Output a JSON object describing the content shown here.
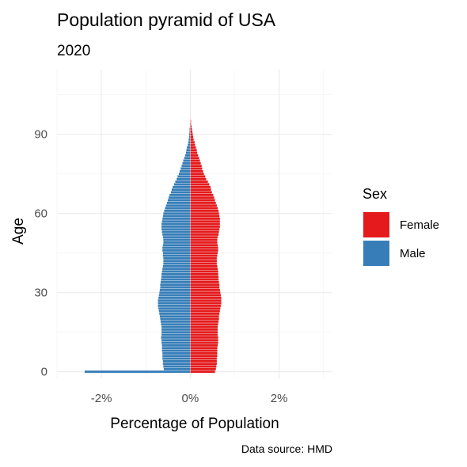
{
  "chart_data": {
    "type": "bar",
    "orientation": "horizontal",
    "title": "Population pyramid of USA",
    "subtitle": "2020",
    "xlabel": "Percentage of Population",
    "ylabel": "Age",
    "caption": "Data source: HMD",
    "xlim": [
      -3.0,
      3.2
    ],
    "ylim": [
      -2.5,
      114.5
    ],
    "xticks": [
      -2,
      0,
      2
    ],
    "xtick_labels": [
      "-2%",
      "0%",
      "2%"
    ],
    "yticks": [
      0,
      30,
      60,
      90
    ],
    "ytick_labels": [
      "0",
      "30",
      "60",
      "90"
    ],
    "grid": true,
    "legend": {
      "title": "Sex",
      "position": "right",
      "entries": [
        {
          "label": "Female",
          "color": "#e41a1c"
        },
        {
          "label": "Male",
          "color": "#377eb8"
        }
      ]
    },
    "series": [
      {
        "name": "Female",
        "color": "#e41a1c",
        "ages": [
          0,
          1,
          2,
          3,
          4,
          5,
          6,
          7,
          8,
          9,
          10,
          11,
          12,
          13,
          14,
          15,
          16,
          17,
          18,
          19,
          20,
          21,
          22,
          23,
          24,
          25,
          26,
          27,
          28,
          29,
          30,
          31,
          32,
          33,
          34,
          35,
          36,
          37,
          38,
          39,
          40,
          41,
          42,
          43,
          44,
          45,
          46,
          47,
          48,
          49,
          50,
          51,
          52,
          53,
          54,
          55,
          56,
          57,
          58,
          59,
          60,
          61,
          62,
          63,
          64,
          65,
          66,
          67,
          68,
          69,
          70,
          71,
          72,
          73,
          74,
          75,
          76,
          77,
          78,
          79,
          80,
          81,
          82,
          83,
          84,
          85,
          86,
          87,
          88,
          89,
          90,
          91,
          92,
          93,
          94,
          95,
          96,
          97,
          98,
          99,
          100,
          101
        ],
        "values": [
          0.56,
          0.58,
          0.59,
          0.6,
          0.6,
          0.6,
          0.61,
          0.61,
          0.61,
          0.61,
          0.62,
          0.63,
          0.63,
          0.63,
          0.62,
          0.62,
          0.62,
          0.62,
          0.63,
          0.64,
          0.65,
          0.65,
          0.66,
          0.67,
          0.68,
          0.69,
          0.7,
          0.7,
          0.7,
          0.69,
          0.68,
          0.67,
          0.66,
          0.66,
          0.65,
          0.64,
          0.64,
          0.63,
          0.63,
          0.62,
          0.61,
          0.6,
          0.6,
          0.6,
          0.61,
          0.62,
          0.63,
          0.63,
          0.62,
          0.61,
          0.61,
          0.62,
          0.64,
          0.65,
          0.66,
          0.67,
          0.67,
          0.67,
          0.67,
          0.66,
          0.65,
          0.64,
          0.62,
          0.6,
          0.58,
          0.56,
          0.54,
          0.52,
          0.49,
          0.47,
          0.46,
          0.43,
          0.4,
          0.36,
          0.34,
          0.31,
          0.29,
          0.27,
          0.26,
          0.24,
          0.22,
          0.2,
          0.18,
          0.16,
          0.15,
          0.13,
          0.11,
          0.1,
          0.08,
          0.07,
          0.06,
          0.05,
          0.04,
          0.03,
          0.02,
          0.02,
          0.01,
          0.01,
          0.005,
          0.004,
          0.003,
          0.002
        ]
      },
      {
        "name": "Male",
        "color": "#377eb8",
        "ages": [
          0,
          1,
          2,
          3,
          4,
          5,
          6,
          7,
          8,
          9,
          10,
          11,
          12,
          13,
          14,
          15,
          16,
          17,
          18,
          19,
          20,
          21,
          22,
          23,
          24,
          25,
          26,
          27,
          28,
          29,
          30,
          31,
          32,
          33,
          34,
          35,
          36,
          37,
          38,
          39,
          40,
          41,
          42,
          43,
          44,
          45,
          46,
          47,
          48,
          49,
          50,
          51,
          52,
          53,
          54,
          55,
          56,
          57,
          58,
          59,
          60,
          61,
          62,
          63,
          64,
          65,
          66,
          67,
          68,
          69,
          70,
          71,
          72,
          73,
          74,
          75,
          76,
          77,
          78,
          79,
          80,
          81,
          82,
          83,
          84,
          85,
          86,
          87,
          88,
          89,
          90,
          91,
          92,
          93,
          94,
          95,
          96,
          97,
          98,
          99,
          100,
          101
        ],
        "values": [
          -2.38,
          -0.6,
          -0.61,
          -0.62,
          -0.62,
          -0.63,
          -0.63,
          -0.63,
          -0.64,
          -0.64,
          -0.64,
          -0.65,
          -0.65,
          -0.66,
          -0.65,
          -0.65,
          -0.65,
          -0.65,
          -0.66,
          -0.67,
          -0.68,
          -0.69,
          -0.7,
          -0.71,
          -0.72,
          -0.73,
          -0.73,
          -0.73,
          -0.72,
          -0.71,
          -0.7,
          -0.69,
          -0.68,
          -0.68,
          -0.67,
          -0.66,
          -0.65,
          -0.65,
          -0.64,
          -0.63,
          -0.62,
          -0.61,
          -0.61,
          -0.61,
          -0.62,
          -0.62,
          -0.63,
          -0.63,
          -0.62,
          -0.61,
          -0.61,
          -0.62,
          -0.63,
          -0.64,
          -0.65,
          -0.65,
          -0.65,
          -0.64,
          -0.63,
          -0.62,
          -0.61,
          -0.59,
          -0.57,
          -0.55,
          -0.53,
          -0.51,
          -0.49,
          -0.47,
          -0.44,
          -0.42,
          -0.4,
          -0.37,
          -0.34,
          -0.31,
          -0.29,
          -0.26,
          -0.24,
          -0.22,
          -0.2,
          -0.18,
          -0.16,
          -0.14,
          -0.12,
          -0.1,
          -0.09,
          -0.08,
          -0.06,
          -0.05,
          -0.04,
          -0.03,
          -0.03,
          -0.02,
          -0.02,
          -0.01,
          -0.01,
          -0.005,
          -0.004,
          -0.003,
          -0.002,
          -0.002,
          -0.001,
          -0.001
        ]
      }
    ]
  }
}
